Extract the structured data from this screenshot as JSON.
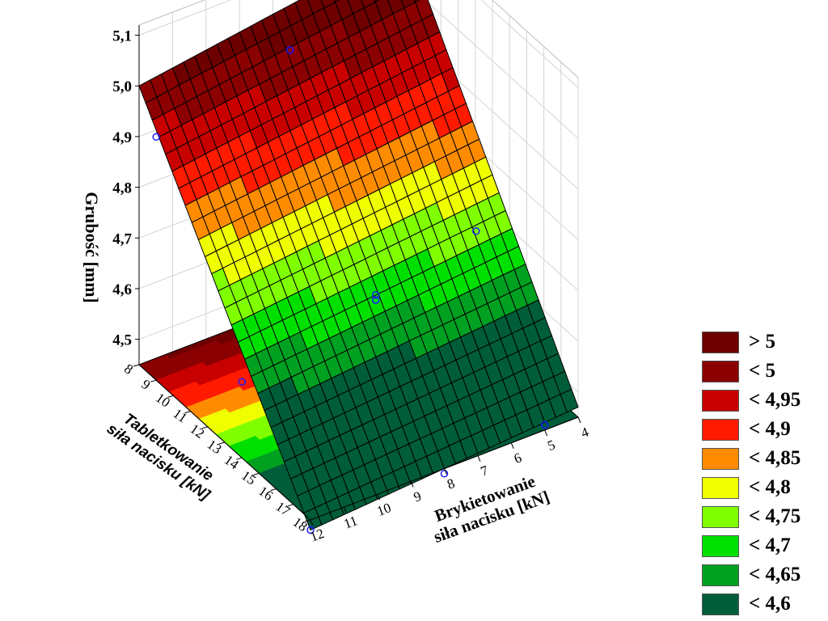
{
  "chart_data": {
    "type": "surface3d",
    "zlabel": "Grubość [mm]",
    "xlabel_line1": "Brykietowanie",
    "xlabel_line2": "siła nacisku [kN]",
    "ylabel_line1": "Tabletkowanie",
    "ylabel_line2": "siła nacisku [kN]",
    "x_range": [
      4,
      12
    ],
    "y_range": [
      8,
      18
    ],
    "z_range": [
      4.45,
      5.12
    ],
    "x_ticks": [
      "4",
      "5",
      "6",
      "7",
      "8",
      "9",
      "10",
      "11",
      "12"
    ],
    "y_ticks": [
      "8",
      "9",
      "10",
      "11",
      "12",
      "13",
      "14",
      "15",
      "16",
      "17",
      "18"
    ],
    "z_ticks": [
      "4,5",
      "4,6",
      "4,7",
      "4,8",
      "4,9",
      "5,0",
      "5,1"
    ],
    "surface_corners": [
      {
        "x": 12,
        "y": 8,
        "z": 5.0
      },
      {
        "x": 4,
        "y": 8,
        "z": 5.08
      },
      {
        "x": 12,
        "y": 18,
        "z": 4.43
      },
      {
        "x": 4,
        "y": 18,
        "z": 4.47
      }
    ],
    "observed_points": [
      {
        "x": 12,
        "y": 9,
        "z": 4.93
      },
      {
        "x": 8,
        "y": 9,
        "z": 5.0
      },
      {
        "x": 5,
        "y": 9,
        "z": 5.08
      },
      {
        "x": 12,
        "y": 14,
        "z": 4.6
      },
      {
        "x": 8,
        "y": 14,
        "z": 4.67
      },
      {
        "x": 8,
        "y": 14,
        "z": 4.66
      },
      {
        "x": 5,
        "y": 14,
        "z": 4.72
      },
      {
        "x": 12,
        "y": 18,
        "z": 4.43
      },
      {
        "x": 8,
        "y": 18,
        "z": 4.44
      },
      {
        "x": 5,
        "y": 18,
        "z": 4.46
      }
    ],
    "legend": [
      {
        "label": "> 5",
        "color": "#6e0000"
      },
      {
        "label": "< 5",
        "color": "#8b0000"
      },
      {
        "label": "< 4,95",
        "color": "#c80000"
      },
      {
        "label": "< 4,9",
        "color": "#ff1a00"
      },
      {
        "label": "< 4,85",
        "color": "#ff8c00"
      },
      {
        "label": "< 4,8",
        "color": "#f0ff00"
      },
      {
        "label": "< 4,75",
        "color": "#80ff00"
      },
      {
        "label": "< 4,7",
        "color": "#00e000"
      },
      {
        "label": "< 4,65",
        "color": "#00a020"
      },
      {
        "label": "< 4,6",
        "color": "#005d3a"
      }
    ]
  }
}
